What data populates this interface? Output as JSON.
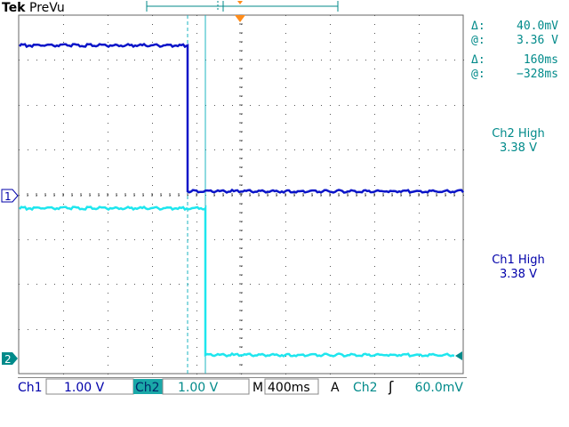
{
  "header": {
    "brand_bold": "Tek",
    "brand_rest": "PreVu"
  },
  "markers": {
    "ch1": "1",
    "ch2": "2"
  },
  "cursor_readout": {
    "v_delta_symbol": "Δ:",
    "v_delta_value": "40.0mV",
    "v_at_symbol": "@:",
    "v_at_value": "3.36 V",
    "t_delta_symbol": "Δ:",
    "t_delta_value": "160ms",
    "t_at_symbol": "@:",
    "t_at_value": "−328ms"
  },
  "measurements": [
    {
      "label": "Ch2 High",
      "value": "3.38 V"
    },
    {
      "label": "Ch1 High",
      "value": "3.38 V"
    }
  ],
  "status_bar": {
    "ch1_label": "Ch1",
    "ch1_scale": "1.00 V",
    "ch2_label": "Ch2",
    "ch2_scale": "1.00 V",
    "timebase_label": "M",
    "timebase_value": "400ms",
    "trigger_mode": "A",
    "trigger_source": "Ch2",
    "trigger_slope_symbol": "ʃ",
    "trigger_level": "60.0mV"
  },
  "colors": {
    "ch1": "#0a14c8",
    "ch2": "#1ee6ee",
    "text": "#008a8a",
    "ch1_text": "#0000aa",
    "grid": "#666666",
    "trigger": "#ff8c1a"
  }
}
